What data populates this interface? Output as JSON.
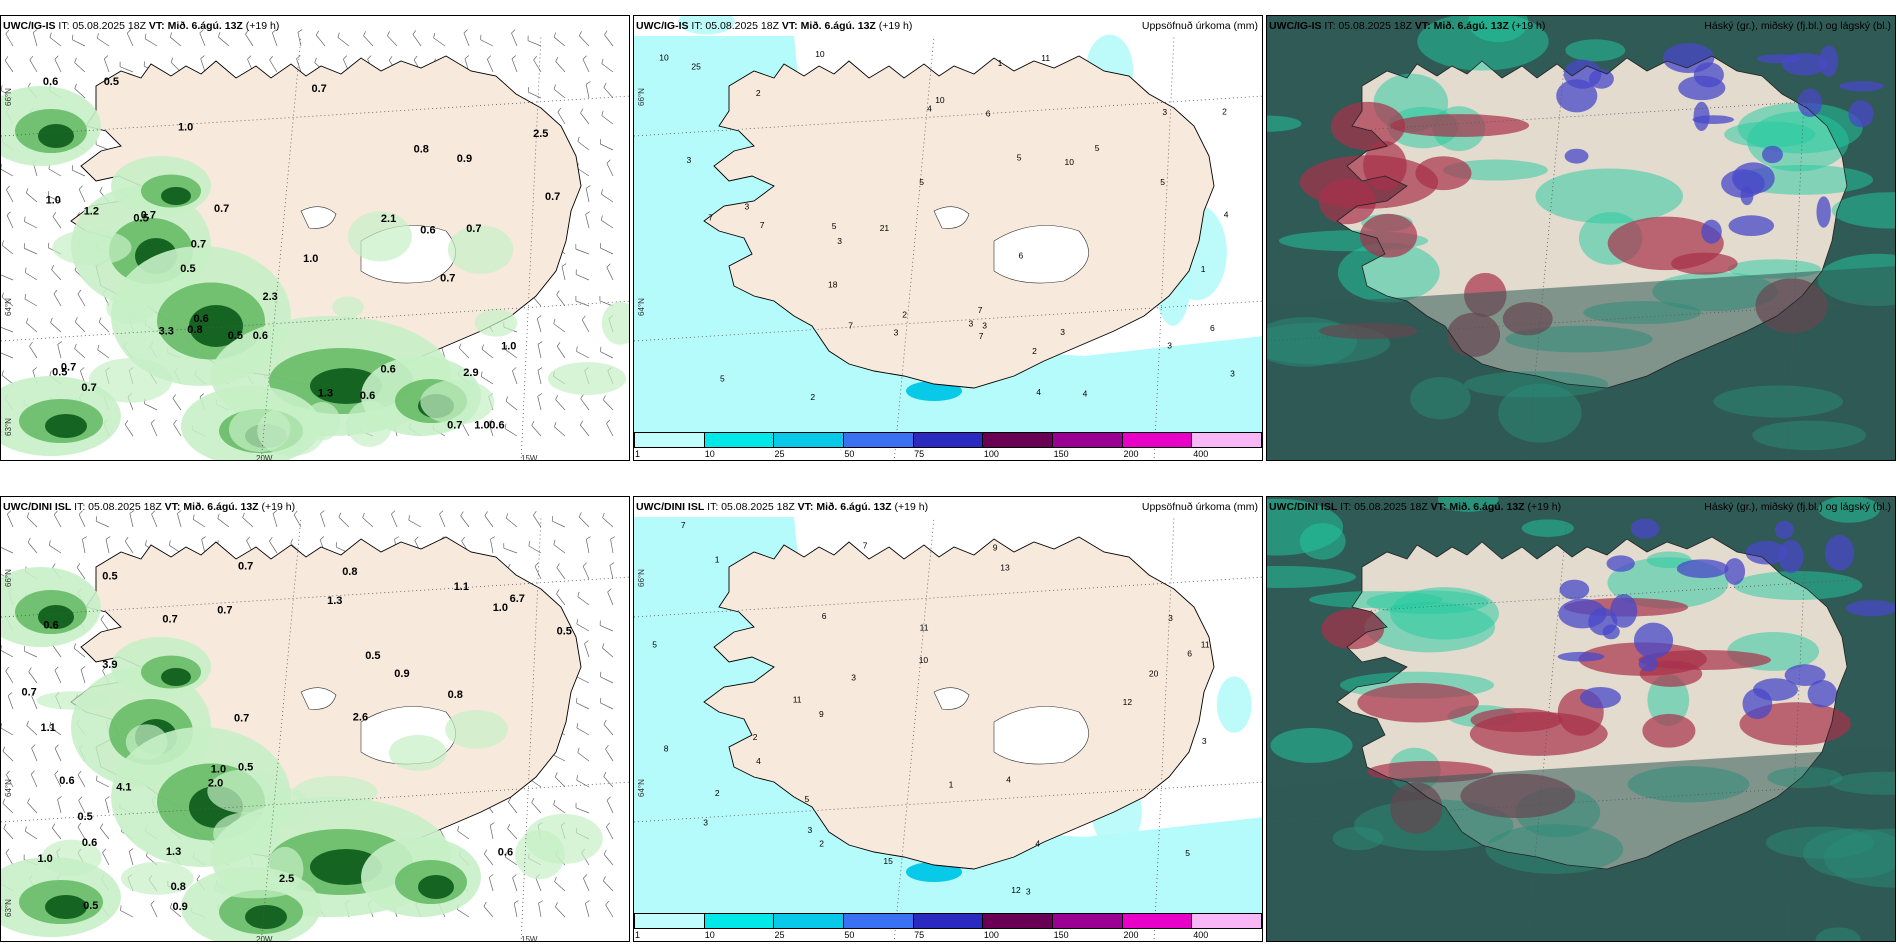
{
  "panels": [
    {
      "id": "p1",
      "model": "UWC/IG-IS",
      "init_prefix": "IT:",
      "init": "05.08.2025 18Z",
      "valid_prefix": "VT:",
      "valid": "Mið. 6.ágú. 13Z",
      "lead": "(+19 h)",
      "right_title": "",
      "labels": [
        "2.3",
        "0.5",
        "0.5",
        "0.7",
        "0.6",
        "1.0",
        "0.6",
        "0.5",
        "0.8",
        "0.6",
        "0.7",
        "0.7",
        "0.6",
        "0.7",
        "0.7",
        "0.6",
        "1.0",
        "0.7",
        "2.5",
        "0.7",
        "1.0",
        "0.7",
        "0.6",
        "3.3",
        "2.9",
        "2.1",
        "1.3",
        "0.7",
        "0.9",
        "0.5",
        "0.6",
        "0.5",
        "0.7",
        "1.0",
        "0.8",
        "1.0",
        "1.2"
      ],
      "axis": {
        "lat_top": "66°N",
        "lat_mid": "64°N",
        "lat_bot": "63°N",
        "lon_left": "20W",
        "lon_right": "15W"
      }
    },
    {
      "id": "p2",
      "model": "UWC/IG-IS",
      "init_prefix": "IT:",
      "init": "05.08.2025 18Z",
      "valid_prefix": "VT:",
      "valid": "Mið. 6.ágú. 13Z",
      "lead": "(+19 h)",
      "right_title": "Uppsöfnuð úrkoma (mm)",
      "labels": [
        "3",
        "6",
        "7",
        "1",
        "3",
        "10",
        "4",
        "3",
        "2",
        "2",
        "3",
        "5",
        "11",
        "3",
        "2",
        "5",
        "4",
        "3",
        "7",
        "10",
        "2",
        "4",
        "18",
        "25",
        "3",
        "5",
        "10",
        "1",
        "3",
        "7",
        "3",
        "4",
        "5",
        "6",
        "7",
        "10",
        "5",
        "2",
        "3",
        "21",
        "6",
        "7",
        "5"
      ],
      "legend": [
        "1",
        "10",
        "25",
        "50",
        "75",
        "100",
        "150",
        "200",
        "400"
      ],
      "axis": {
        "lat_top": "66°N",
        "lat_mid": "64°N"
      }
    },
    {
      "id": "p3",
      "model": "UWC/IG-IS",
      "init_prefix": "IT:",
      "init": "05.08.2025 18Z",
      "valid_prefix": "VT:",
      "valid": "Mið. 6.ágú. 13Z",
      "lead": "(+19 h)",
      "right_title": "Háský (gr.), miðský (fj.bl.) og lágský (bl.)"
    },
    {
      "id": "p4",
      "model": "UWC/DINI ISL",
      "init_prefix": "IT:",
      "init": "05.08.2025 18Z",
      "valid_prefix": "VT:",
      "valid": "Mið. 6.ágú. 13Z",
      "lead": "(+19 h)",
      "right_title": "",
      "labels": [
        "1.3",
        "0.8",
        "0.5",
        "0.7",
        "0.8",
        "0.6",
        "0.5",
        "0.7",
        "0.5",
        "0.7",
        "0.9",
        "0.6",
        "1.0",
        "1.3",
        "1.1",
        "0.8",
        "0.9",
        "1.1",
        "1.0",
        "0.6",
        "3.9",
        "2.6",
        "4.1",
        "2.5",
        "2.0",
        "6.7",
        "1.0",
        "0.7",
        "0.5",
        "0.5",
        "0.5",
        "0.7",
        "0.6"
      ],
      "axis": {
        "lat_top": "66°N",
        "lat_mid": "64°N",
        "lat_bot": "63°N",
        "lon_left": "20W",
        "lon_right": "15W"
      }
    },
    {
      "id": "p5",
      "model": "UWC/DINI ISL",
      "init_prefix": "IT:",
      "init": "05.08.2025 18Z",
      "valid_prefix": "VT:",
      "valid": "Mið. 6.ágú. 13Z",
      "lead": "(+19 h)",
      "right_title": "Uppsöfnuð úrkoma (mm)",
      "labels": [
        "5",
        "3",
        "15",
        "4",
        "2",
        "10",
        "11",
        "3",
        "1",
        "2",
        "12",
        "3",
        "4",
        "8",
        "6",
        "11",
        "3",
        "11",
        "5",
        "12",
        "9",
        "7",
        "20",
        "6",
        "3",
        "1",
        "2",
        "3",
        "5",
        "4",
        "7",
        "13",
        "9"
      ],
      "legend": [
        "1",
        "10",
        "25",
        "50",
        "75",
        "100",
        "150",
        "200",
        "400"
      ],
      "axis": {
        "lat_top": "66°N",
        "lat_mid": "64°N"
      }
    },
    {
      "id": "p6",
      "model": "UWC/DINI ISL",
      "init_prefix": "IT:",
      "init": "05.08.2025 18Z",
      "valid_prefix": "VT:",
      "valid": "Mið. 6.ágú. 13Z",
      "lead": "(+19 h)",
      "right_title": "Háský (gr.), miðský (fj.bl.) og lágský (bl.)"
    }
  ],
  "legend_colors": [
    "#c2fdfd",
    "#00e8e8",
    "#08c9e8",
    "#3a70f2",
    "#2a2ac0",
    "#6a0053",
    "#9c0093",
    "#e800c8",
    "#f8b8f8"
  ],
  "colors": {
    "land": "#f7e9dc",
    "sea": "#ffffff",
    "precip_light": "#b6fbfb",
    "green_light": "#c6efc6",
    "green_mid": "#62b862",
    "green_dark": "#0c5a1a",
    "cloud_dark": "#2f5a56",
    "cloud_teal": "#22c9a0",
    "cloud_red": "#a8304a",
    "cloud_blue": "#4848c8"
  }
}
